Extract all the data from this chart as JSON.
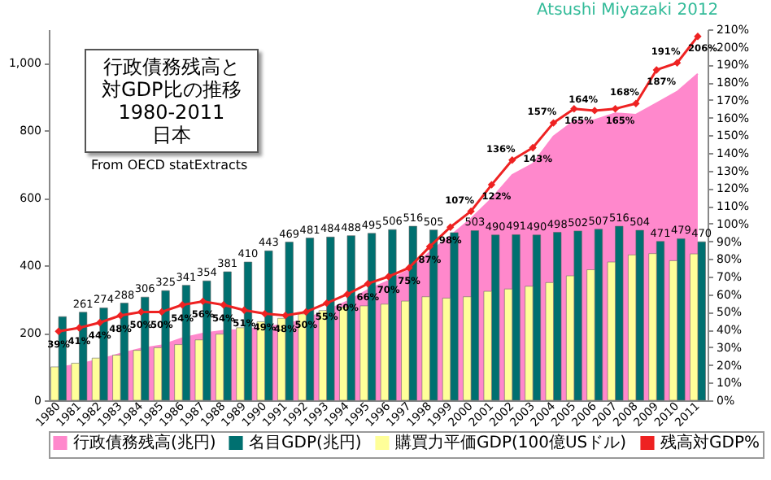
{
  "chart_data": {
    "type": "bar",
    "title": "行政債務残高と対GDP比の推移",
    "subtitle": "1980-2011 日本",
    "annotations": [
      "From OECD statExtracts",
      "Atsushi Miyazaki 2012"
    ],
    "categories": [
      "1980",
      "1981",
      "1982",
      "1983",
      "1984",
      "1985",
      "1986",
      "1987",
      "1988",
      "1989",
      "1990",
      "1991",
      "1992",
      "1993",
      "1994",
      "1995",
      "1996",
      "1997",
      "1998",
      "1999",
      "2000",
      "2001",
      "2002",
      "2003",
      "2004",
      "2005",
      "2006",
      "2007",
      "2008",
      "2009",
      "2010",
      "2011"
    ],
    "series": [
      {
        "name": "行政債務残高(兆円)",
        "type": "area",
        "color": "#ff88cc",
        "values": [
          97,
          107,
          121,
          138,
          153,
          163,
          184,
          198,
          206,
          209,
          217,
          225,
          241,
          266,
          293,
          327,
          354,
          387,
          439,
          487,
          538,
          598,
          668,
          701,
          782,
          828,
          831,
          851,
          847,
          881,
          915,
          968
        ]
      },
      {
        "name": "名目GDP(兆円)",
        "color": "#007070",
        "values": [
          248,
          261,
          274,
          288,
          306,
          325,
          341,
          354,
          381,
          410,
          443,
          469,
          481,
          484,
          488,
          495,
          506,
          516,
          505,
          497,
          503,
          490,
          491,
          490,
          498,
          502,
          507,
          516,
          504,
          471,
          479,
          470
        ],
        "value_labels": [
          null,
          "261",
          "274",
          "288",
          "306",
          "325",
          "341",
          "354",
          "381",
          "410",
          "443",
          "469",
          "481",
          "484",
          "488",
          "495",
          "506",
          "516",
          "505",
          null,
          "503",
          "490",
          "491",
          "490",
          "498",
          "502",
          "507",
          "516",
          "504",
          "471",
          "479",
          "470"
        ]
      },
      {
        "name": "購買力平価GDP(100億USドル)",
        "color": "#ffff99",
        "values": [
          99,
          110,
          125,
          134,
          148,
          156,
          165,
          179,
          196,
          215,
          233,
          243,
          256,
          266,
          276,
          280,
          285,
          294,
          307,
          303,
          307,
          323,
          330,
          338,
          349,
          369,
          387,
          410,
          431,
          435,
          414,
          434
        ]
      },
      {
        "name": "残高対GDP%",
        "type": "line",
        "axis": "y2",
        "color": "#ee2222",
        "marker": "diamond",
        "line_style": "solid",
        "values": [
          39,
          41,
          44,
          48,
          50,
          50,
          54,
          56,
          54,
          51,
          49,
          48,
          50,
          55,
          60,
          66,
          70,
          75,
          87,
          98,
          107,
          122,
          136,
          143,
          157,
          165,
          164,
          165,
          168,
          187,
          191,
          206
        ],
        "value_labels": [
          "39%",
          "41%",
          "44%",
          "48%",
          "50%",
          "50%",
          "54%",
          "56%",
          "54%",
          "51%",
          "49%",
          "48%",
          "50%",
          "55%",
          "60%",
          "66%",
          "70%",
          "75%",
          "87%",
          "98%",
          "107%",
          "122%",
          "136%",
          "143%",
          "157%",
          "165%",
          "164%",
          "165%",
          "168%",
          "187%",
          "191%",
          "206%"
        ]
      }
    ],
    "ylim": [
      0,
      1100
    ],
    "yticks": [
      0,
      200,
      400,
      600,
      800,
      {
        "value": 1000,
        "label": "1,000"
      }
    ],
    "y2lim": [
      0,
      210
    ],
    "y2ticks": [
      {
        "value": 0,
        "label": "0%"
      },
      {
        "value": 10,
        "label": "10%"
      },
      {
        "value": 20,
        "label": "20%"
      },
      {
        "value": 30,
        "label": "30%"
      },
      {
        "value": 40,
        "label": "40%"
      },
      {
        "value": 50,
        "label": "50%"
      },
      {
        "value": 60,
        "label": "60%"
      },
      {
        "value": 70,
        "label": "70%"
      },
      {
        "value": 80,
        "label": "80%"
      },
      {
        "value": 90,
        "label": "90%"
      },
      {
        "value": 100,
        "label": "100%"
      },
      {
        "value": 110,
        "label": "110%"
      },
      {
        "value": 120,
        "label": "120%"
      },
      {
        "value": 130,
        "label": "130%"
      },
      {
        "value": 140,
        "label": "140%"
      },
      {
        "value": 150,
        "label": "150%"
      },
      {
        "value": 160,
        "label": "160%"
      },
      {
        "value": 170,
        "label": "170%"
      },
      {
        "value": 180,
        "label": "180%"
      },
      {
        "value": 190,
        "label": "190%"
      },
      {
        "value": 200,
        "label": "200%"
      },
      {
        "value": 210,
        "label": "210%"
      }
    ],
    "legend": "bottom"
  }
}
